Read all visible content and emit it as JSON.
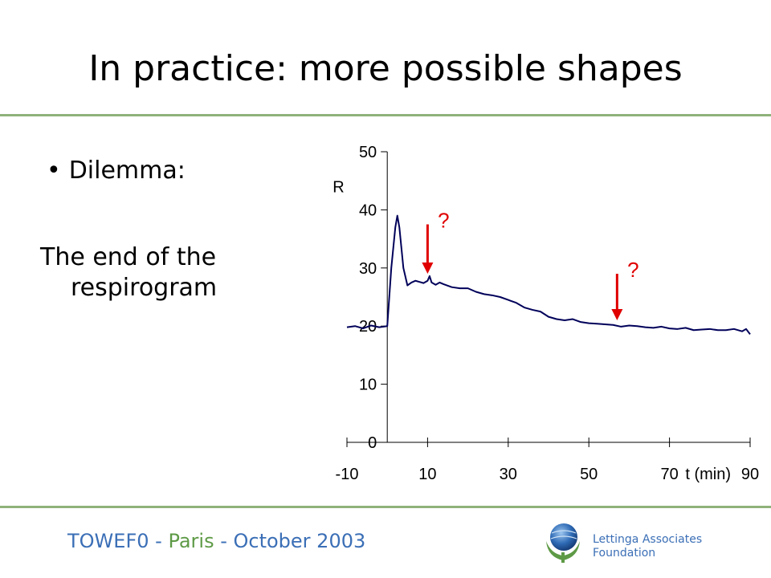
{
  "slide": {
    "title": "In practice: more possible shapes",
    "bullet": "Dilemma:",
    "paragraph_line1": "The end of the",
    "paragraph_line2": "respirogram"
  },
  "footer": {
    "event_prefix": "TOWEF0 - ",
    "event_city": "Paris",
    "event_suffix": " - October 2003",
    "org_line1": "Lettinga Associates",
    "org_line2": "Foundation"
  },
  "colors": {
    "accent_rule": "#8fb27a",
    "series": "#00005a",
    "arrow": "#e00000",
    "footer_blue": "#3b6fb6",
    "footer_green": "#5e9a46"
  },
  "chart_data": {
    "type": "line",
    "ylabel": "R",
    "xlabel": "t (min)",
    "xlim": [
      -10,
      90
    ],
    "ylim": [
      0,
      50
    ],
    "x_ticks": [
      -10,
      10,
      30,
      50,
      70,
      90
    ],
    "y_ticks": [
      0,
      10,
      20,
      30,
      40,
      50
    ],
    "x_tick_labels": [
      "-10",
      "10",
      "30",
      "50",
      "70",
      "90"
    ],
    "y_tick_labels": [
      "0",
      "10",
      "20",
      "30",
      "40",
      "50"
    ],
    "series": [
      {
        "x": [
          -10,
          -8,
          -6,
          -4,
          -2,
          0,
          1,
          2,
          2.5,
          3,
          4,
          5,
          6,
          7,
          8,
          9,
          10,
          10.5,
          11,
          12,
          13,
          14,
          16,
          18,
          20,
          22,
          24,
          26,
          28,
          30,
          32,
          34,
          36,
          38,
          40,
          42,
          44,
          46,
          48,
          50,
          52,
          54,
          56,
          58,
          60,
          62,
          64,
          66,
          68,
          70,
          72,
          74,
          76,
          78,
          80,
          82,
          84,
          86,
          88,
          89,
          90
        ],
        "y": [
          19.8,
          20.0,
          19.6,
          20.1,
          19.8,
          20.0,
          30.0,
          37.0,
          39.0,
          37.0,
          30.0,
          27.0,
          27.5,
          27.8,
          27.6,
          27.4,
          27.8,
          28.6,
          27.5,
          27.1,
          27.5,
          27.2,
          26.7,
          26.5,
          26.5,
          25.9,
          25.5,
          25.3,
          25.0,
          24.5,
          24.0,
          23.2,
          22.8,
          22.5,
          21.6,
          21.2,
          21.0,
          21.2,
          20.7,
          20.5,
          20.4,
          20.3,
          20.2,
          19.9,
          20.1,
          20.0,
          19.8,
          19.7,
          19.9,
          19.6,
          19.5,
          19.7,
          19.3,
          19.4,
          19.5,
          19.3,
          19.3,
          19.5,
          19.1,
          19.5,
          18.6
        ]
      }
    ],
    "annotations": [
      {
        "label": "?",
        "x": 10,
        "y_top": 37.5,
        "y_bottom": 29.0
      },
      {
        "label": "?",
        "x": 57,
        "y_top": 29.0,
        "y_bottom": 21.0
      }
    ]
  }
}
